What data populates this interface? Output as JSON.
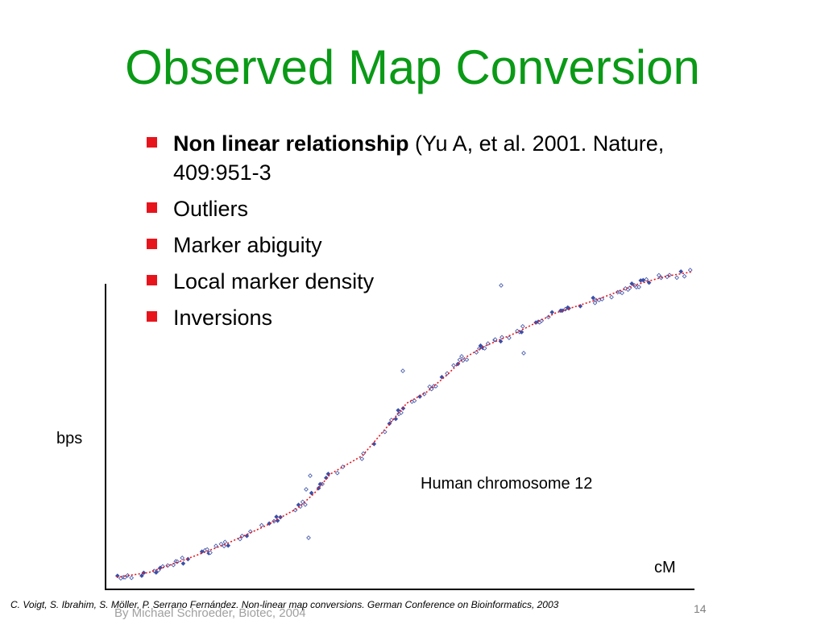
{
  "slide": {
    "title": "Observed Map Conversion",
    "bullets": [
      {
        "bold": "Non linear relationship",
        "text": " (Yu A, et al. 2001. Nature, 409:951-3"
      },
      {
        "bold": "",
        "text": "Outliers"
      },
      {
        "bold": "",
        "text": "Marker abiguity"
      },
      {
        "bold": "",
        "text": "Local marker density"
      },
      {
        "bold": "",
        "text": "Inversions"
      }
    ],
    "bullet_color": "#e8141c",
    "title_color": "#0a9a16"
  },
  "plot": {
    "y_label": "bps",
    "x_label": "cM",
    "annotation": "Human chromosome 12",
    "marker_color": "#3a4fa8",
    "curve_color": "#e8141c"
  },
  "footer": {
    "citation": "C. Voigt, S. Ibrahim, S. Möller, P. Serrano Fernández. Non-linear map conversions. German Conference on Bioinformatics, 2003",
    "author_line": "By Michael Schroeder, Biotec, 2004",
    "page_number": "14"
  }
}
